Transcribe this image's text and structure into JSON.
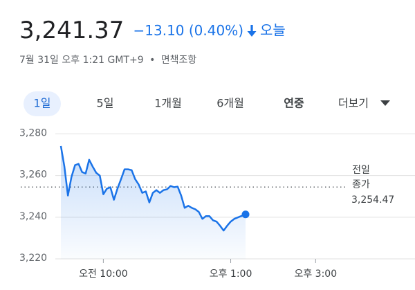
{
  "header": {
    "price": "3,241.37",
    "change": "−13.10 (0.40%)",
    "period": "오늘",
    "timestamp": "7월 31일 오후 1:21 GMT+9",
    "separator": "•",
    "disclaimer": "면책조항"
  },
  "tabs": {
    "items": [
      "1일",
      "5일",
      "1개월",
      "6개월",
      "연중",
      "더보기"
    ],
    "selected": 0
  },
  "chart_data": {
    "type": "line",
    "color": "#1a73e8",
    "grid": true,
    "x": [
      540,
      545,
      550,
      555,
      560,
      565,
      570,
      575,
      580,
      585,
      590,
      595,
      600,
      605,
      610,
      615,
      620,
      625,
      630,
      635,
      640,
      645,
      650,
      655,
      660,
      665,
      670,
      675,
      680,
      685,
      690,
      695,
      700,
      705,
      710,
      715,
      720,
      725,
      730,
      735,
      740,
      745,
      750,
      755,
      760,
      765,
      770,
      775,
      780,
      785,
      801
    ],
    "values": [
      3274.2,
      3264.3,
      3250.4,
      3259.3,
      3265,
      3265.6,
      3261.7,
      3261,
      3267.6,
      3264.3,
      3261.3,
      3260,
      3251,
      3253.7,
      3254.4,
      3248.4,
      3253.7,
      3258.3,
      3263,
      3263,
      3262.6,
      3258.3,
      3255.7,
      3251.7,
      3252.4,
      3247.1,
      3251.7,
      3253,
      3251.7,
      3253,
      3253.4,
      3255,
      3254.4,
      3254.7,
      3250.4,
      3244.5,
      3245.5,
      3244.5,
      3243.8,
      3242.5,
      3239.2,
      3240.5,
      3240.5,
      3238.5,
      3237.9,
      3235.9,
      3233.6,
      3235.9,
      3237.9,
      3239.2,
      3241.37
    ],
    "xlim": [
      540,
      930
    ],
    "ylim": [
      3220,
      3280
    ],
    "yticks": [
      {
        "value": 3220,
        "label": "3,220"
      },
      {
        "value": 3240,
        "label": "3,240"
      },
      {
        "value": 3260,
        "label": "3,260"
      },
      {
        "value": 3280,
        "label": "3,280"
      }
    ],
    "xticks": [
      {
        "value": 600,
        "label": "오전 10:00"
      },
      {
        "value": 780,
        "label": "오후 1:00"
      },
      {
        "value": 900,
        "label": "오후 3:00"
      }
    ],
    "previous_close": {
      "label": [
        "전일",
        "종가"
      ],
      "value": 3254.47,
      "value_label": "3,254.47"
    }
  }
}
